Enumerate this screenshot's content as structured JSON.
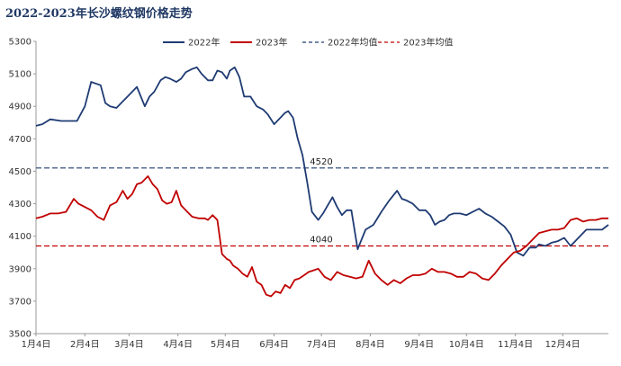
{
  "chart_data": {
    "type": "line",
    "title": "2022-2023年长沙螺纹钢价格走势",
    "xlabel": "",
    "ylabel": "",
    "ylim": [
      3500,
      5300
    ],
    "yticks": [
      "5300",
      "5100",
      "4900",
      "4700",
      "4500",
      "4300",
      "4100",
      "3900",
      "3700",
      "3500"
    ],
    "x_tick_labels": [
      "1月4日",
      "2月4日",
      "3月4日",
      "4月4日",
      "5月4日",
      "6月4日",
      "7月4日",
      "8月4日",
      "9月4日",
      "10月4日",
      "11月4日",
      "12月4日"
    ],
    "grid": false,
    "legend_position": "top",
    "series": [
      {
        "name": "2022年",
        "color": "#1f3b73",
        "x": [
          1,
          5,
          10,
          17,
          22,
          27,
          32,
          36,
          42,
          45,
          48,
          52,
          55,
          58,
          62,
          65,
          70,
          73,
          76,
          80,
          83,
          86,
          90,
          93,
          96,
          100,
          103,
          106,
          110,
          113,
          116,
          119,
          122,
          124,
          127,
          130,
          133,
          137,
          141,
          145,
          148,
          152,
          155,
          159,
          161,
          164,
          167,
          170,
          173,
          176,
          180,
          183,
          186,
          189,
          192,
          195,
          198,
          201,
          205,
          210,
          215,
          220,
          225,
          230,
          233,
          236,
          240,
          244,
          248,
          251,
          254,
          257,
          260,
          263,
          266,
          270,
          274,
          278,
          282,
          286,
          290,
          294,
          298,
          302,
          306,
          310,
          314,
          318,
          320,
          324,
          328,
          332,
          336,
          340,
          345,
          350,
          355,
          360,
          364
        ],
        "values": [
          4780,
          4790,
          4820,
          4810,
          4810,
          4810,
          4900,
          5050,
          5030,
          4920,
          4900,
          4890,
          4920,
          4950,
          4990,
          5020,
          4900,
          4960,
          4990,
          5060,
          5080,
          5070,
          5050,
          5070,
          5110,
          5130,
          5140,
          5100,
          5060,
          5060,
          5120,
          5110,
          5070,
          5120,
          5140,
          5080,
          4960,
          4960,
          4900,
          4880,
          4850,
          4790,
          4820,
          4860,
          4870,
          4830,
          4700,
          4600,
          4430,
          4250,
          4200,
          4240,
          4290,
          4340,
          4280,
          4230,
          4260,
          4260,
          4020,
          4140,
          4170,
          4250,
          4320,
          4380,
          4330,
          4320,
          4300,
          4260,
          4260,
          4230,
          4170,
          4190,
          4200,
          4230,
          4240,
          4240,
          4230,
          4250,
          4270,
          4240,
          4220,
          4190,
          4160,
          4110,
          4000,
          3980,
          4030,
          4030,
          4050,
          4040,
          4060,
          4070,
          4090,
          4040,
          4090,
          4140,
          4140,
          4140,
          4170
        ]
      },
      {
        "name": "2023年",
        "color": "#c00000",
        "x": [
          1,
          5,
          10,
          15,
          20,
          25,
          28,
          32,
          36,
          40,
          44,
          48,
          52,
          56,
          59,
          62,
          65,
          68,
          72,
          75,
          78,
          81,
          84,
          87,
          90,
          93,
          96,
          100,
          104,
          108,
          110,
          113,
          116,
          119,
          122,
          124,
          126,
          129,
          132,
          135,
          138,
          141,
          144,
          147,
          150,
          153,
          156,
          159,
          162,
          165,
          168,
          171,
          174,
          177,
          180,
          184,
          188,
          192,
          196,
          200,
          204,
          208,
          212,
          216,
          220,
          224,
          228,
          232,
          236,
          240,
          244,
          248,
          252,
          256,
          260,
          264,
          268,
          272,
          276,
          280,
          284,
          288,
          292,
          296,
          300,
          304,
          308,
          312,
          316,
          320,
          324,
          328,
          332,
          336,
          340,
          344,
          348,
          352,
          356,
          360,
          364
        ],
        "values": [
          4210,
          4220,
          4240,
          4240,
          4250,
          4330,
          4300,
          4280,
          4260,
          4220,
          4200,
          4290,
          4310,
          4380,
          4330,
          4360,
          4420,
          4430,
          4470,
          4420,
          4390,
          4320,
          4300,
          4310,
          4380,
          4290,
          4260,
          4220,
          4210,
          4210,
          4200,
          4230,
          4200,
          3990,
          3960,
          3950,
          3920,
          3900,
          3870,
          3850,
          3910,
          3820,
          3800,
          3740,
          3730,
          3760,
          3750,
          3800,
          3780,
          3830,
          3840,
          3860,
          3880,
          3890,
          3900,
          3850,
          3830,
          3880,
          3860,
          3850,
          3840,
          3850,
          3950,
          3870,
          3830,
          3800,
          3830,
          3810,
          3840,
          3860,
          3860,
          3870,
          3900,
          3880,
          3880,
          3870,
          3850,
          3850,
          3880,
          3870,
          3840,
          3830,
          3870,
          3920,
          3960,
          4000,
          4010,
          4040,
          4080,
          4120,
          4130,
          4140,
          4140,
          4150,
          4200,
          4210,
          4190,
          4200,
          4200,
          4210,
          4210
        ]
      },
      {
        "name": "2022年均值",
        "color": "#1f3b73",
        "dashed": true,
        "value": 4520,
        "label": "4520"
      },
      {
        "name": "2023年均值",
        "color": "#c00000",
        "dashed": true,
        "value": 4040,
        "label": "4040"
      }
    ]
  }
}
